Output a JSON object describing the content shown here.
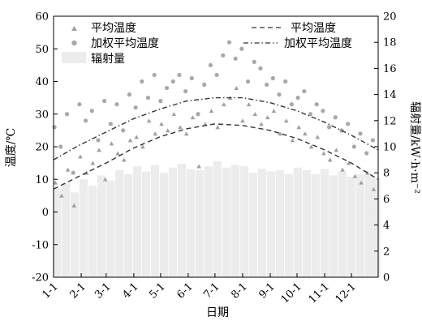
{
  "chart_data": {
    "type": "scatter",
    "xlabel": "日期",
    "ylabel_left": "温度/℃",
    "ylabel_right": "辐射量/kW·h·m⁻²",
    "x_ticks": [
      "1-1",
      "2-1",
      "3-1",
      "4-1",
      "5-1",
      "6-1",
      "7-1",
      "8-1",
      "9-1",
      "10-1",
      "11-1",
      "12-1"
    ],
    "x_tick_days": [
      1,
      32,
      60,
      91,
      121,
      152,
      182,
      213,
      244,
      274,
      305,
      335
    ],
    "x_range_days": [
      1,
      365
    ],
    "ylim_left": [
      -20,
      60
    ],
    "yticks_left": [
      -20,
      -10,
      0,
      10,
      20,
      30,
      40,
      50,
      60
    ],
    "ylim_right": [
      0,
      20
    ],
    "yticks_right": [
      0,
      2,
      4,
      6,
      8,
      10,
      12,
      14,
      16,
      18,
      20
    ],
    "legend": {
      "left": [
        {
          "label": "平均温度",
          "marker": "triangle"
        },
        {
          "label": "加权平均温度",
          "marker": "circle"
        },
        {
          "label": "辐射量",
          "marker": "bar"
        }
      ],
      "right": [
        {
          "label": "平均温度",
          "line": "dashed"
        },
        {
          "label": "加权平均温度",
          "line": "dash-dot"
        }
      ]
    },
    "series": [
      {
        "name": "平均温度",
        "kind": "scatter",
        "marker": "triangle",
        "color": "#a0a0a0",
        "x": [
          3,
          10,
          17,
          24,
          31,
          38,
          45,
          52,
          59,
          66,
          73,
          80,
          87,
          94,
          101,
          108,
          115,
          122,
          129,
          136,
          143,
          150,
          157,
          164,
          171,
          178,
          185,
          192,
          199,
          206,
          213,
          220,
          227,
          234,
          241,
          248,
          255,
          262,
          269,
          276,
          283,
          290,
          297,
          304,
          311,
          318,
          325,
          332,
          339,
          346,
          353,
          360
        ],
        "y": [
          9,
          5,
          13,
          2,
          17,
          12,
          15,
          19,
          10,
          21,
          18,
          16,
          22,
          23,
          20,
          28,
          24,
          27,
          25,
          30,
          26,
          24,
          29,
          14,
          27,
          31,
          26,
          33,
          35,
          38,
          28,
          33,
          30,
          27,
          29,
          31,
          24,
          28,
          22,
          26,
          24,
          20,
          23,
          18,
          16,
          19,
          13,
          15,
          11,
          9,
          12,
          7
        ]
      },
      {
        "name": "加权平均温度",
        "kind": "scatter",
        "marker": "circle",
        "color": "#a8a8a8",
        "x": [
          2,
          9,
          16,
          23,
          30,
          37,
          44,
          51,
          58,
          65,
          72,
          79,
          86,
          93,
          100,
          107,
          114,
          121,
          128,
          135,
          142,
          149,
          156,
          163,
          170,
          177,
          184,
          191,
          198,
          205,
          212,
          219,
          226,
          233,
          240,
          247,
          254,
          261,
          268,
          275,
          282,
          289,
          296,
          303,
          310,
          317,
          324,
          331,
          338,
          345,
          352,
          359
        ],
        "y": [
          26,
          20,
          30,
          12,
          33,
          28,
          31,
          22,
          34,
          27,
          33,
          25,
          36,
          32,
          40,
          35,
          42,
          34,
          38,
          40,
          42,
          37,
          41,
          30,
          39,
          45,
          42,
          48,
          52,
          47,
          50,
          40,
          46,
          44,
          39,
          41,
          36,
          40,
          33,
          35,
          37,
          30,
          33,
          31,
          26,
          29,
          25,
          27,
          20,
          24,
          18,
          22
        ]
      },
      {
        "name": "平均温度",
        "kind": "line",
        "line_style": "dashed",
        "color": "#333333",
        "x": [
          1,
          30,
          60,
          90,
          120,
          150,
          182,
          213,
          244,
          274,
          305,
          335,
          365
        ],
        "y": [
          7,
          11,
          15,
          19.5,
          23,
          25.5,
          27,
          26.5,
          25,
          22.5,
          19,
          15,
          10
        ]
      },
      {
        "name": "加权平均温度",
        "kind": "line",
        "line_style": "dash-dot",
        "color": "#333333",
        "x": [
          1,
          30,
          60,
          90,
          120,
          150,
          182,
          213,
          244,
          274,
          305,
          335,
          365
        ],
        "y": [
          16,
          20.5,
          24.5,
          28.5,
          31.5,
          34,
          35,
          35,
          33.5,
          31,
          27.5,
          23.5,
          19
        ]
      },
      {
        "name": "辐射量",
        "kind": "bar",
        "axis": "right",
        "color": "#ececec",
        "x": [
          5,
          15,
          25,
          35,
          45,
          55,
          65,
          75,
          85,
          95,
          105,
          115,
          125,
          135,
          145,
          155,
          165,
          175,
          185,
          195,
          205,
          215,
          225,
          235,
          245,
          255,
          265,
          275,
          285,
          295,
          305,
          315,
          325,
          335,
          345,
          355,
          363
        ],
        "y": [
          6.8,
          7.2,
          6.5,
          7.5,
          7.0,
          7.8,
          7.4,
          8.2,
          7.9,
          8.5,
          8.1,
          8.6,
          8.0,
          8.4,
          8.7,
          8.3,
          8.2,
          8.5,
          8.9,
          8.4,
          8.6,
          8.5,
          8.0,
          8.3,
          8.1,
          8.2,
          7.9,
          8.4,
          8.2,
          7.9,
          8.3,
          7.8,
          8.1,
          7.7,
          7.9,
          7.8,
          7.6
        ]
      }
    ]
  }
}
